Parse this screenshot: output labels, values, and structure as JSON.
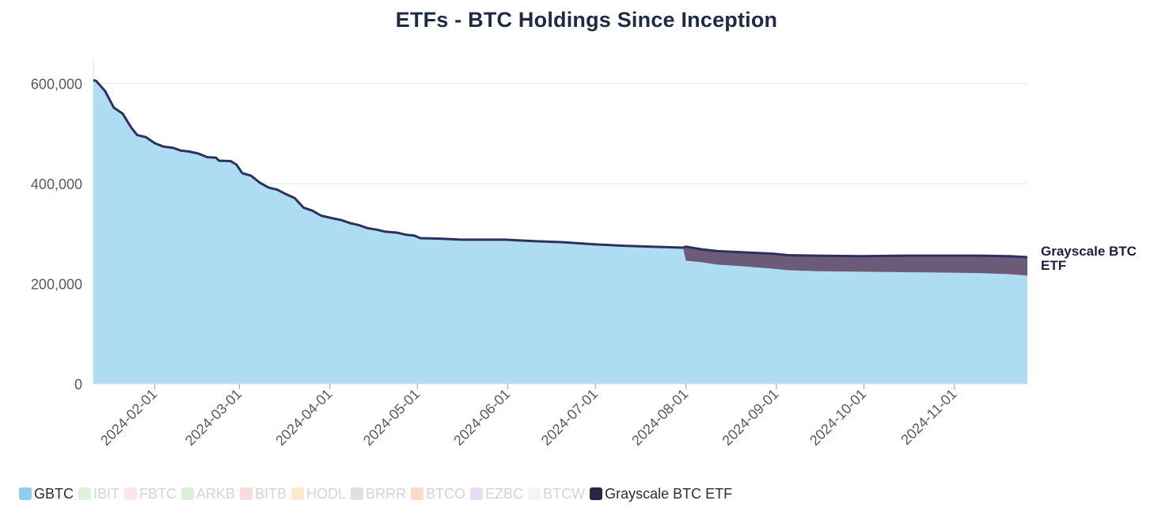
{
  "chart_data": {
    "type": "area",
    "title": "ETFs - BTC Holdings Since Inception",
    "xlabel": "",
    "ylabel": "",
    "ylim": [
      0,
      650000
    ],
    "yticks": [
      0,
      200000,
      400000,
      600000
    ],
    "ytick_labels": [
      "0",
      "200,000",
      "400,000",
      "600,000"
    ],
    "xlim": [
      "2024-01-11",
      "2024-11-26"
    ],
    "xticks": [
      "2024-02-01",
      "2024-03-01",
      "2024-04-01",
      "2024-05-01",
      "2024-06-01",
      "2024-07-01",
      "2024-08-01",
      "2024-09-01",
      "2024-10-01",
      "2024-11-01"
    ],
    "grid": true,
    "stacked": true,
    "series": [
      {
        "name": "GBTC",
        "color": "#aedcf2",
        "legend_color": "#8ecdef",
        "visible": true,
        "points": [
          [
            "2024-01-11",
            607000
          ],
          [
            "2024-01-12",
            605000
          ],
          [
            "2024-01-15",
            585000
          ],
          [
            "2024-01-18",
            552000
          ],
          [
            "2024-01-21",
            540000
          ],
          [
            "2024-01-24",
            512000
          ],
          [
            "2024-01-26",
            497000
          ],
          [
            "2024-01-29",
            493000
          ],
          [
            "2024-02-01",
            481000
          ],
          [
            "2024-02-04",
            474000
          ],
          [
            "2024-02-07",
            472000
          ],
          [
            "2024-02-10",
            466000
          ],
          [
            "2024-02-13",
            464000
          ],
          [
            "2024-02-16",
            460000
          ],
          [
            "2024-02-19",
            453000
          ],
          [
            "2024-02-22",
            452000
          ],
          [
            "2024-02-23",
            446000
          ],
          [
            "2024-02-27",
            445000
          ],
          [
            "2024-02-29",
            438000
          ],
          [
            "2024-03-02",
            421000
          ],
          [
            "2024-03-05",
            416000
          ],
          [
            "2024-03-08",
            402000
          ],
          [
            "2024-03-11",
            392000
          ],
          [
            "2024-03-14",
            388000
          ],
          [
            "2024-03-17",
            379000
          ],
          [
            "2024-03-20",
            371000
          ],
          [
            "2024-03-23",
            352000
          ],
          [
            "2024-03-26",
            346000
          ],
          [
            "2024-03-29",
            336000
          ],
          [
            "2024-04-01",
            332000
          ],
          [
            "2024-04-05",
            327000
          ],
          [
            "2024-04-08",
            321000
          ],
          [
            "2024-04-11",
            317000
          ],
          [
            "2024-04-14",
            311000
          ],
          [
            "2024-04-17",
            308000
          ],
          [
            "2024-04-20",
            304000
          ],
          [
            "2024-04-24",
            302000
          ],
          [
            "2024-04-27",
            298000
          ],
          [
            "2024-04-30",
            296000
          ],
          [
            "2024-05-02",
            291000
          ],
          [
            "2024-05-09",
            290000
          ],
          [
            "2024-05-16",
            288000
          ],
          [
            "2024-05-31",
            288000
          ],
          [
            "2024-06-10",
            285000
          ],
          [
            "2024-06-20",
            283000
          ],
          [
            "2024-06-30",
            279000
          ],
          [
            "2024-07-10",
            276000
          ],
          [
            "2024-07-20",
            274000
          ],
          [
            "2024-07-31",
            272000
          ],
          [
            "2024-08-01",
            246000
          ],
          [
            "2024-08-06",
            243000
          ],
          [
            "2024-08-12",
            238000
          ],
          [
            "2024-08-20",
            235000
          ],
          [
            "2024-08-31",
            230000
          ],
          [
            "2024-09-05",
            227000
          ],
          [
            "2024-09-15",
            225000
          ],
          [
            "2024-09-30",
            224000
          ],
          [
            "2024-10-15",
            223000
          ],
          [
            "2024-10-31",
            222000
          ],
          [
            "2024-11-10",
            221000
          ],
          [
            "2024-11-20",
            219000
          ],
          [
            "2024-11-26",
            216000
          ]
        ]
      },
      {
        "name": "IBIT",
        "color": "#dff2dc",
        "visible": false,
        "points": []
      },
      {
        "name": "FBTC",
        "color": "#fde6ea",
        "visible": false,
        "points": []
      },
      {
        "name": "ARKB",
        "color": "#dcefd9",
        "visible": false,
        "points": []
      },
      {
        "name": "BITB",
        "color": "#f9dcdc",
        "visible": false,
        "points": []
      },
      {
        "name": "HODL",
        "color": "#fde9cf",
        "visible": false,
        "points": []
      },
      {
        "name": "BRRR",
        "color": "#e4dfdc",
        "visible": false,
        "points": []
      },
      {
        "name": "BTCO",
        "color": "#fcd9c8",
        "visible": false,
        "points": []
      },
      {
        "name": "EZBC",
        "color": "#e9dcf4",
        "visible": false,
        "points": []
      },
      {
        "name": "BTCW",
        "color": "#f4f4f6",
        "visible": false,
        "points": []
      },
      {
        "name": "Grayscale BTC ETF",
        "color": "#6b5a78",
        "legend_color": "#2a2545",
        "visible": true,
        "label": [
          "Grayscale BTC",
          "ETF"
        ],
        "points": [
          [
            "2024-07-31",
            0
          ],
          [
            "2024-08-01",
            28000
          ],
          [
            "2024-08-06",
            26000
          ],
          [
            "2024-08-12",
            27000
          ],
          [
            "2024-08-20",
            28000
          ],
          [
            "2024-08-31",
            30000
          ],
          [
            "2024-09-05",
            30000
          ],
          [
            "2024-09-15",
            31000
          ],
          [
            "2024-09-30",
            31000
          ],
          [
            "2024-10-15",
            33000
          ],
          [
            "2024-10-31",
            34000
          ],
          [
            "2024-11-10",
            35000
          ],
          [
            "2024-11-20",
            36000
          ],
          [
            "2024-11-26",
            37000
          ]
        ]
      }
    ],
    "total_line_color": "#2d3060"
  }
}
